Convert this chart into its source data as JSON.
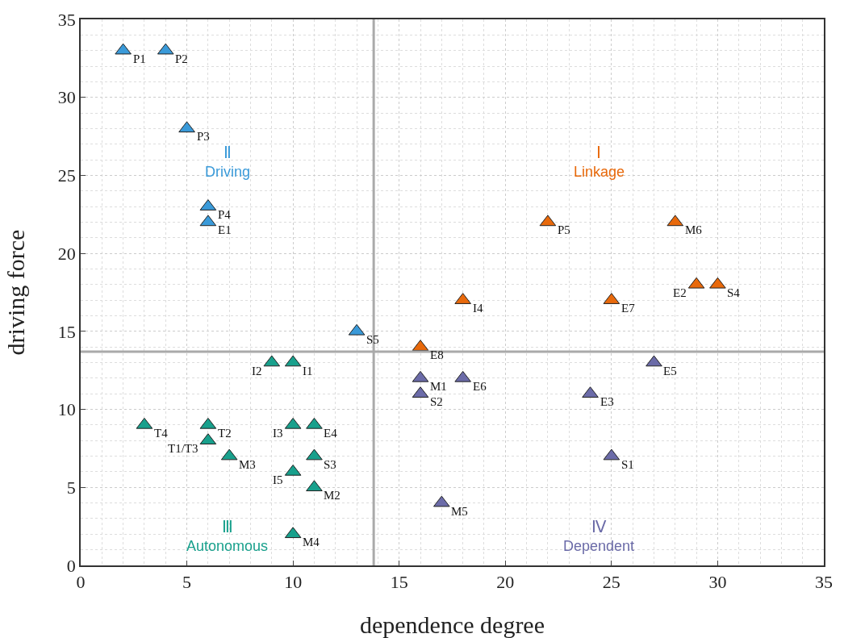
{
  "chart_data": {
    "type": "scatter",
    "xlabel": "dependence degree",
    "ylabel": "driving force",
    "xlim": [
      0,
      35
    ],
    "ylim": [
      0,
      35
    ],
    "xticks": [
      0,
      5,
      10,
      15,
      20,
      25,
      30,
      35
    ],
    "yticks": [
      0,
      5,
      10,
      15,
      20,
      25,
      30,
      35
    ],
    "grid": true,
    "marker": "triangle",
    "series": [
      {
        "color": "#3a9ad9",
        "x": [
          2,
          4,
          5,
          6,
          6,
          13
        ],
        "values": [
          33,
          33,
          28,
          23,
          22,
          15
        ]
      },
      {
        "color": "#e8690b",
        "x": [
          22,
          28,
          29,
          30,
          18,
          25,
          16
        ],
        "values": [
          22,
          22,
          18,
          18,
          17,
          17,
          14
        ]
      },
      {
        "color": "#18a08c",
        "x": [
          9,
          10,
          3,
          6,
          6,
          7,
          10,
          11,
          11,
          10,
          11,
          10
        ],
        "values": [
          13,
          13,
          9,
          9,
          8,
          7,
          9,
          9,
          7,
          6,
          5,
          2
        ]
      },
      {
        "color": "#6b6ba8",
        "x": [
          16,
          18,
          16,
          27,
          24,
          25,
          17
        ],
        "values": [
          12,
          12,
          11,
          13,
          11,
          7,
          4
        ]
      }
    ],
    "ref_lines": [
      {
        "axis": "x",
        "value": 13.8,
        "color": "#aaaaaa"
      },
      {
        "axis": "y",
        "value": 13.7,
        "color": "#aaaaaa"
      }
    ],
    "annotations": [
      "Ⅱ",
      "Driving",
      "Ⅰ",
      "Linkage",
      "Ⅲ",
      "Autonomous",
      "Ⅳ",
      "Dependent",
      {
        "text": "P1",
        "x": 2,
        "y": 33
      },
      {
        "text": "P2",
        "x": 4,
        "y": 33
      },
      {
        "text": "P3",
        "x": 5,
        "y": 28
      },
      {
        "text": "P4",
        "x": 6,
        "y": 23
      },
      {
        "text": "E1",
        "x": 6,
        "y": 22
      },
      {
        "text": "S5",
        "x": 13,
        "y": 15
      },
      {
        "text": "P5",
        "x": 22,
        "y": 22
      },
      {
        "text": "M6",
        "x": 28,
        "y": 22
      },
      {
        "text": "E2",
        "x": 29,
        "y": 18
      },
      {
        "text": "S4",
        "x": 30,
        "y": 18
      },
      {
        "text": "I4",
        "x": 18,
        "y": 17
      },
      {
        "text": "E7",
        "x": 25,
        "y": 17
      },
      {
        "text": "E8",
        "x": 16,
        "y": 14
      },
      {
        "text": "I2",
        "x": 9,
        "y": 13
      },
      {
        "text": "I1",
        "x": 10,
        "y": 13
      },
      {
        "text": "T4",
        "x": 3,
        "y": 9
      },
      {
        "text": "T2",
        "x": 6,
        "y": 9
      },
      {
        "text": "T1/T3",
        "x": 6,
        "y": 8
      },
      {
        "text": "M3",
        "x": 7,
        "y": 7
      },
      {
        "text": "I3",
        "x": 10,
        "y": 9
      },
      {
        "text": "E4",
        "x": 11,
        "y": 9
      },
      {
        "text": "S3",
        "x": 11,
        "y": 7
      },
      {
        "text": "I5",
        "x": 10,
        "y": 6
      },
      {
        "text": "M2",
        "x": 11,
        "y": 5
      },
      {
        "text": "M4",
        "x": 10,
        "y": 2
      },
      {
        "text": "M1",
        "x": 16,
        "y": 12
      },
      {
        "text": "E6",
        "x": 18,
        "y": 12
      },
      {
        "text": "S2",
        "x": 16,
        "y": 11
      },
      {
        "text": "E5",
        "x": 27,
        "y": 13
      },
      {
        "text": "E3",
        "x": 24,
        "y": 11
      },
      {
        "text": "S1",
        "x": 25,
        "y": 7
      },
      {
        "text": "M5",
        "x": 17,
        "y": 4
      }
    ]
  }
}
